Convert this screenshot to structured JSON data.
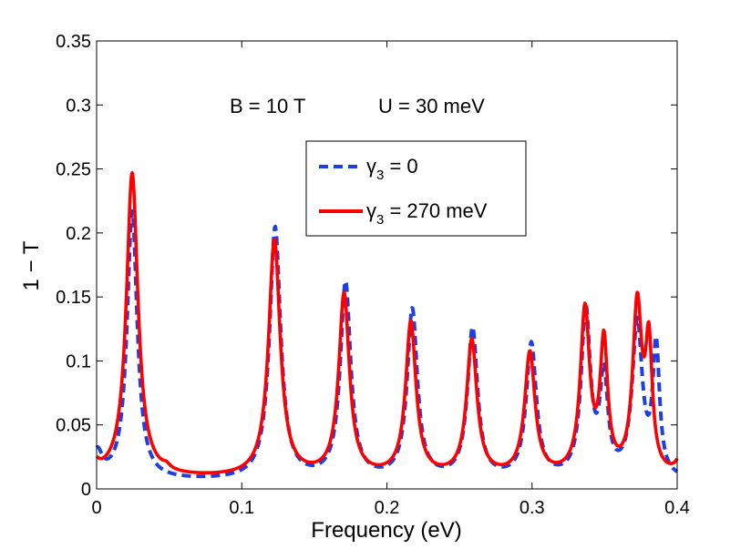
{
  "chart_data": {
    "type": "line",
    "title": "",
    "xlabel": "Frequency  (eV)",
    "ylabel": "1 − T",
    "xlim": [
      0,
      0.4
    ],
    "ylim": [
      0,
      0.35
    ],
    "xticks": [
      0,
      0.1,
      0.2,
      0.3,
      0.4
    ],
    "xtick_labels": [
      "0",
      "0.1",
      "0.2",
      "0.3",
      "0.4"
    ],
    "yticks": [
      0,
      0.05,
      0.1,
      0.15,
      0.2,
      0.25,
      0.3,
      0.35
    ],
    "ytick_labels": [
      "0",
      "0.05",
      "0.1",
      "0.15",
      "0.2",
      "0.25",
      "0.3",
      "0.35"
    ],
    "grid": false,
    "annotation_b": "B = 10 T",
    "annotation_u": "U = 30 meV",
    "legend_position": "upper-center",
    "series": [
      {
        "name": "γ",
        "name_sub": "3",
        "name_rest": " = 0",
        "color": "#1f3fe0",
        "style": "dashed",
        "baseline": 0.02,
        "floor": 0.006,
        "peaks": [
          {
            "x": 0.0005,
            "h": 0.02,
            "w": 0.004
          },
          {
            "x": 0.0245,
            "h": 0.21,
            "w": 0.0042
          },
          {
            "x": 0.123,
            "h": 0.197,
            "w": 0.0046
          },
          {
            "x": 0.1715,
            "h": 0.153,
            "w": 0.0043
          },
          {
            "x": 0.2175,
            "h": 0.132,
            "w": 0.0042
          },
          {
            "x": 0.259,
            "h": 0.117,
            "w": 0.0042
          },
          {
            "x": 0.2995,
            "h": 0.105,
            "w": 0.0042
          },
          {
            "x": 0.337,
            "h": 0.13,
            "w": 0.0038
          },
          {
            "x": 0.3495,
            "h": 0.076,
            "w": 0.0032
          },
          {
            "x": 0.3725,
            "h": 0.12,
            "w": 0.0042
          },
          {
            "x": 0.3855,
            "h": 0.1,
            "w": 0.0028
          }
        ]
      },
      {
        "name": "γ",
        "name_sub": "3",
        "name_rest": " = 270 meV",
        "color": "#ff0000",
        "style": "solid",
        "baseline": 0.022,
        "floor": 0.008,
        "peaks": [
          {
            "x": -0.002,
            "h": 0.01,
            "w": 0.004
          },
          {
            "x": 0.0245,
            "h": 0.238,
            "w": 0.0048
          },
          {
            "x": 0.048,
            "h": 0.003,
            "w": 0.003
          },
          {
            "x": 0.1225,
            "h": 0.185,
            "w": 0.0048
          },
          {
            "x": 0.1705,
            "h": 0.142,
            "w": 0.0044
          },
          {
            "x": 0.2165,
            "h": 0.12,
            "w": 0.0043
          },
          {
            "x": 0.2585,
            "h": 0.106,
            "w": 0.0043
          },
          {
            "x": 0.2985,
            "h": 0.096,
            "w": 0.0043
          },
          {
            "x": 0.3365,
            "h": 0.128,
            "w": 0.0039
          },
          {
            "x": 0.3495,
            "h": 0.1,
            "w": 0.0031
          },
          {
            "x": 0.3725,
            "h": 0.131,
            "w": 0.0038
          },
          {
            "x": 0.3805,
            "h": 0.095,
            "w": 0.0028
          },
          {
            "x": 0.404,
            "h": 0.02,
            "w": 0.004
          }
        ]
      }
    ]
  }
}
